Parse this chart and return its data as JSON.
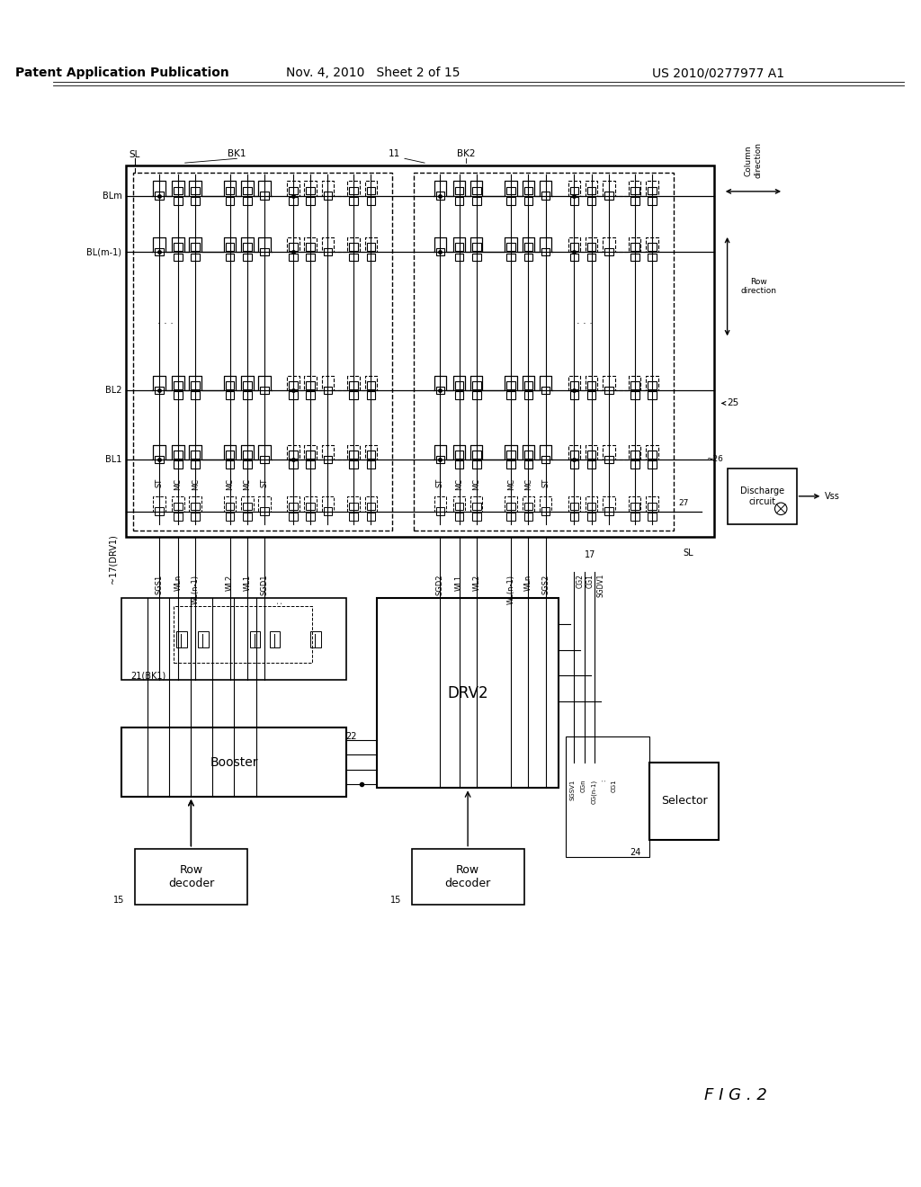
{
  "bg_color": "#ffffff",
  "title_left": "Patent Application Publication",
  "title_mid": "Nov. 4, 2010   Sheet 2 of 15",
  "title_right": "US 2010/0277977 A1",
  "fig_label": "FIG. 2",
  "header_fontsize": 10,
  "body_fontsize": 9,
  "small_fontsize": 7.5,
  "tiny_fontsize": 6.5
}
